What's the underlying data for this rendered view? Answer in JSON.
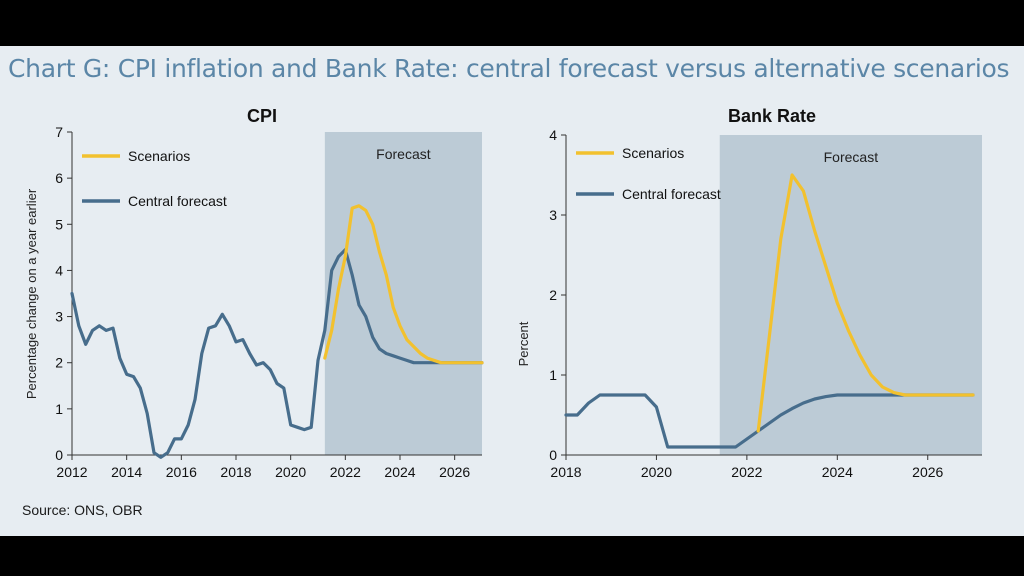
{
  "title": "Chart G: CPI inflation and Bank Rate: central forecast versus alternative scenarios",
  "source": "Source: ONS, OBR",
  "colors": {
    "scenario": "#f2c12e",
    "central": "#476d8c",
    "forecast_shade": "#bccbd6",
    "background": "#e7edf2"
  },
  "chart_data": [
    {
      "type": "line",
      "title": "CPI",
      "ylabel": "Percentage change on a year earlier",
      "xlim": [
        2012,
        2027
      ],
      "ylim": [
        0,
        7
      ],
      "xticks": [
        "2012",
        "2014",
        "2016",
        "2018",
        "2020",
        "2022",
        "2024",
        "2026"
      ],
      "yticks": [
        "0",
        "1",
        "2",
        "3",
        "4",
        "5",
        "6",
        "7"
      ],
      "forecast_region": {
        "label": "Forecast",
        "start": 2021.25,
        "end": 2027
      },
      "legend": [
        "Scenarios",
        "Central forecast"
      ],
      "series": [
        {
          "name": "Scenarios",
          "x": [
            2021.25,
            2021.5,
            2021.75,
            2022.0,
            2022.25,
            2022.5,
            2022.75,
            2023.0,
            2023.25,
            2023.5,
            2023.75,
            2024.0,
            2024.25,
            2024.5,
            2024.75,
            2025.0,
            2025.5,
            2026.0,
            2026.5,
            2027.0
          ],
          "y": [
            2.1,
            2.7,
            3.6,
            4.3,
            5.35,
            5.4,
            5.3,
            5.0,
            4.4,
            3.9,
            3.2,
            2.8,
            2.5,
            2.35,
            2.2,
            2.1,
            2.0,
            2.0,
            2.0,
            2.0
          ]
        },
        {
          "name": "Central forecast",
          "x": [
            2012.0,
            2012.25,
            2012.5,
            2012.75,
            2013.0,
            2013.25,
            2013.5,
            2013.75,
            2014.0,
            2014.25,
            2014.5,
            2014.75,
            2015.0,
            2015.25,
            2015.5,
            2015.75,
            2016.0,
            2016.25,
            2016.5,
            2016.75,
            2017.0,
            2017.25,
            2017.5,
            2017.75,
            2018.0,
            2018.25,
            2018.5,
            2018.75,
            2019.0,
            2019.25,
            2019.5,
            2019.75,
            2020.0,
            2020.25,
            2020.5,
            2020.75,
            2021.0,
            2021.25,
            2021.5,
            2021.75,
            2022.0,
            2022.25,
            2022.5,
            2022.75,
            2023.0,
            2023.25,
            2023.5,
            2023.75,
            2024.0,
            2024.25,
            2024.5,
            2024.75,
            2025.0,
            2025.5,
            2026.0,
            2026.5,
            2027.0
          ],
          "y": [
            3.5,
            2.8,
            2.4,
            2.7,
            2.8,
            2.7,
            2.75,
            2.1,
            1.75,
            1.7,
            1.45,
            0.9,
            0.05,
            -0.05,
            0.05,
            0.35,
            0.35,
            0.65,
            1.2,
            2.2,
            2.75,
            2.8,
            3.05,
            2.8,
            2.45,
            2.5,
            2.2,
            1.95,
            2.0,
            1.85,
            1.55,
            1.45,
            0.65,
            0.6,
            0.55,
            0.6,
            2.05,
            2.7,
            4.0,
            4.3,
            4.45,
            3.9,
            3.25,
            3.0,
            2.55,
            2.3,
            2.2,
            2.15,
            2.1,
            2.05,
            2.0,
            2.0,
            2.0,
            2.0,
            2.0,
            2.0,
            2.0
          ]
        }
      ]
    },
    {
      "type": "line",
      "title": "Bank Rate",
      "ylabel": "Percent",
      "xlim": [
        2018,
        2027.2
      ],
      "ylim": [
        0,
        4
      ],
      "xticks": [
        "2018",
        "2020",
        "2022",
        "2024",
        "2026"
      ],
      "yticks": [
        "0",
        "1",
        "2",
        "3",
        "4"
      ],
      "forecast_region": {
        "label": "Forecast",
        "start": 2021.4,
        "end": 2027.2
      },
      "legend": [
        "Scenarios",
        "Central forecast"
      ],
      "series": [
        {
          "name": "Scenarios",
          "x": [
            2022.25,
            2022.75,
            2023.0,
            2023.25,
            2023.5,
            2023.75,
            2024.0,
            2024.25,
            2024.5,
            2024.75,
            2025.0,
            2025.25,
            2025.5,
            2026.0,
            2026.5,
            2027.0
          ],
          "y": [
            0.3,
            2.7,
            3.5,
            3.3,
            2.8,
            2.35,
            1.9,
            1.55,
            1.25,
            1.0,
            0.85,
            0.78,
            0.75,
            0.75,
            0.75,
            0.75
          ]
        },
        {
          "name": "Central forecast",
          "x": [
            2018.0,
            2018.25,
            2018.5,
            2018.75,
            2019.0,
            2019.25,
            2019.5,
            2019.75,
            2020.0,
            2020.25,
            2020.5,
            2020.75,
            2021.0,
            2021.25,
            2021.5,
            2021.75,
            2022.0,
            2022.25,
            2022.5,
            2022.75,
            2023.0,
            2023.25,
            2023.5,
            2023.75,
            2024.0,
            2024.5,
            2025.0,
            2025.5,
            2026.0,
            2026.5,
            2027.0
          ],
          "y": [
            0.5,
            0.5,
            0.65,
            0.75,
            0.75,
            0.75,
            0.75,
            0.75,
            0.6,
            0.1,
            0.1,
            0.1,
            0.1,
            0.1,
            0.1,
            0.1,
            0.2,
            0.3,
            0.4,
            0.5,
            0.58,
            0.65,
            0.7,
            0.73,
            0.75,
            0.75,
            0.75,
            0.75,
            0.75,
            0.75,
            0.75
          ]
        }
      ]
    }
  ]
}
